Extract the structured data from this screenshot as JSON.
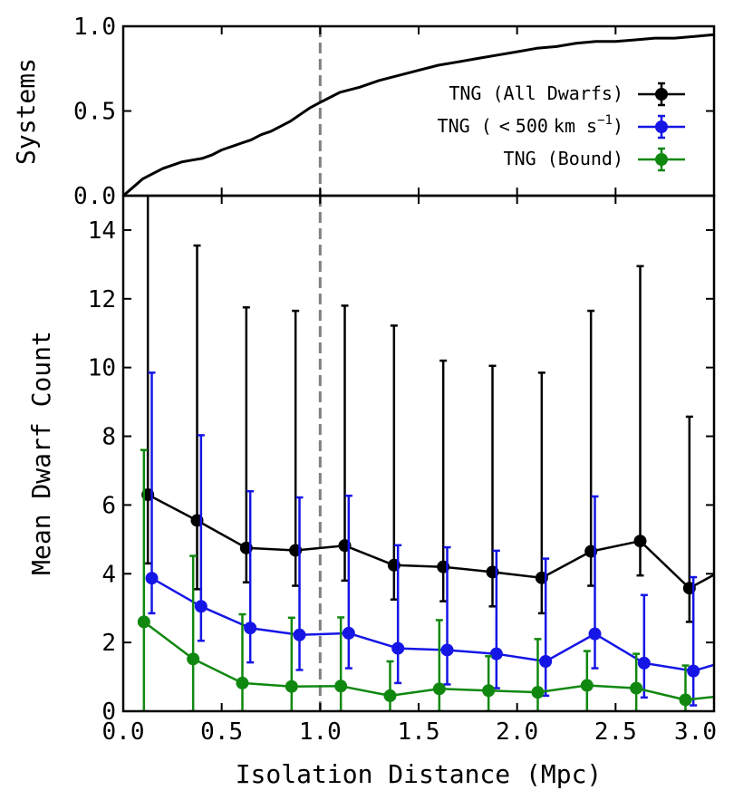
{
  "chart_data": [
    {
      "panel": "top",
      "type": "line",
      "ylabel": "Systems",
      "xlim": [
        0.0,
        3.0
      ],
      "ylim": [
        0.0,
        1.0
      ],
      "yticks": [
        0.0,
        0.5,
        1.0
      ],
      "ytick_labels": [
        "0.0",
        "0.5",
        "1.0"
      ],
      "vline_x": 1.0,
      "series": [
        {
          "name": "cumulative",
          "color": "#000000",
          "x": [
            0.0,
            0.05,
            0.1,
            0.15,
            0.2,
            0.25,
            0.3,
            0.35,
            0.4,
            0.45,
            0.5,
            0.55,
            0.6,
            0.65,
            0.7,
            0.75,
            0.8,
            0.85,
            0.9,
            0.95,
            1.0,
            1.05,
            1.1,
            1.2,
            1.3,
            1.4,
            1.5,
            1.6,
            1.7,
            1.8,
            1.9,
            2.0,
            2.1,
            2.2,
            2.3,
            2.4,
            2.5,
            2.6,
            2.7,
            2.8,
            2.9,
            3.0
          ],
          "y": [
            0.0,
            0.05,
            0.1,
            0.13,
            0.16,
            0.18,
            0.2,
            0.21,
            0.22,
            0.24,
            0.27,
            0.29,
            0.31,
            0.33,
            0.36,
            0.38,
            0.41,
            0.44,
            0.48,
            0.52,
            0.55,
            0.58,
            0.61,
            0.64,
            0.68,
            0.71,
            0.74,
            0.77,
            0.79,
            0.81,
            0.83,
            0.85,
            0.87,
            0.88,
            0.9,
            0.91,
            0.91,
            0.92,
            0.93,
            0.93,
            0.94,
            0.95
          ]
        }
      ]
    },
    {
      "panel": "bottom",
      "type": "line",
      "xlabel": "Isolation Distance (Mpc)",
      "ylabel": "Mean Dwarf Count",
      "xlim": [
        0.0,
        3.0
      ],
      "ylim": [
        0,
        15
      ],
      "xticks": [
        0.0,
        0.5,
        1.0,
        1.5,
        2.0,
        2.5,
        3.0
      ],
      "xtick_labels": [
        "0.0",
        "0.5",
        "1.0",
        "1.5",
        "2.0",
        "2.5",
        "3.0"
      ],
      "yticks": [
        0,
        2,
        4,
        6,
        8,
        10,
        12,
        14
      ],
      "ytick_labels": [
        "0",
        "2",
        "4",
        "6",
        "8",
        "10",
        "12",
        "14"
      ],
      "vline_x": 1.0,
      "series": [
        {
          "name": "TNG (All Dwarfs)",
          "color": "#000000",
          "x": [
            0.125,
            0.375,
            0.625,
            0.875,
            1.125,
            1.375,
            1.625,
            1.875,
            2.125,
            2.375,
            2.625,
            2.875
          ],
          "y": [
            6.3,
            5.55,
            4.75,
            4.68,
            4.82,
            4.25,
            4.2,
            4.05,
            3.88,
            4.65,
            4.95,
            3.58
          ],
          "err_low": [
            4.3,
            3.55,
            3.75,
            3.65,
            3.8,
            3.25,
            3.2,
            3.05,
            2.85,
            3.65,
            3.95,
            2.6
          ],
          "err_high": [
            15.5,
            13.55,
            11.75,
            11.65,
            11.8,
            11.22,
            10.2,
            10.05,
            9.85,
            11.65,
            12.95,
            8.57
          ],
          "line_end_x": 3.0,
          "line_end_y": 3.97
        },
        {
          "name": "TNG ( < 500 km s⁻¹)",
          "color": "#1515e6",
          "x": [
            0.145,
            0.395,
            0.645,
            0.895,
            1.145,
            1.395,
            1.645,
            1.895,
            2.145,
            2.395,
            2.645,
            2.895
          ],
          "y": [
            3.87,
            3.05,
            2.42,
            2.22,
            2.27,
            1.83,
            1.78,
            1.67,
            1.45,
            2.25,
            1.4,
            1.17
          ],
          "err_low": [
            2.85,
            2.05,
            1.42,
            1.2,
            1.25,
            0.82,
            0.78,
            0.67,
            0.45,
            1.25,
            0.4,
            0.17
          ],
          "err_high": [
            9.85,
            8.03,
            6.4,
            6.22,
            6.27,
            4.83,
            4.77,
            4.67,
            4.44,
            6.25,
            3.38,
            3.9
          ],
          "line_end_x": 3.0,
          "line_end_y": 1.35
        },
        {
          "name": "TNG (Bound)",
          "color": "#108810",
          "x": [
            0.105,
            0.355,
            0.605,
            0.855,
            1.105,
            1.355,
            1.605,
            1.855,
            2.105,
            2.355,
            2.605,
            2.855
          ],
          "y": [
            2.6,
            1.52,
            0.82,
            0.72,
            0.73,
            0.45,
            0.65,
            0.6,
            0.55,
            0.75,
            0.67,
            0.33
          ],
          "err_low": [
            0.0,
            0.0,
            0.0,
            0.0,
            0.0,
            0.0,
            0.0,
            0.0,
            0.0,
            0.0,
            0.0,
            0.0
          ],
          "err_high": [
            7.6,
            4.52,
            2.82,
            2.72,
            2.73,
            1.45,
            2.65,
            1.6,
            2.1,
            1.75,
            1.67,
            1.33
          ],
          "line_end_x": 3.0,
          "line_end_y": 0.42
        }
      ],
      "legend": {
        "placement": "top-panel-right",
        "entries": [
          "TNG (All Dwarfs)",
          "TNG ( < 500 km s⁻¹)",
          "TNG (Bound)"
        ]
      }
    }
  ],
  "legend_labels": {
    "all": "TNG (All Dwarfs)",
    "fast_prefix": "TNG (",
    "fast_lt": "<",
    "fast_value": "500",
    "fast_unit": "km s",
    "fast_exp": "−1",
    "fast_suffix": ")",
    "bound": "TNG (Bound)"
  }
}
